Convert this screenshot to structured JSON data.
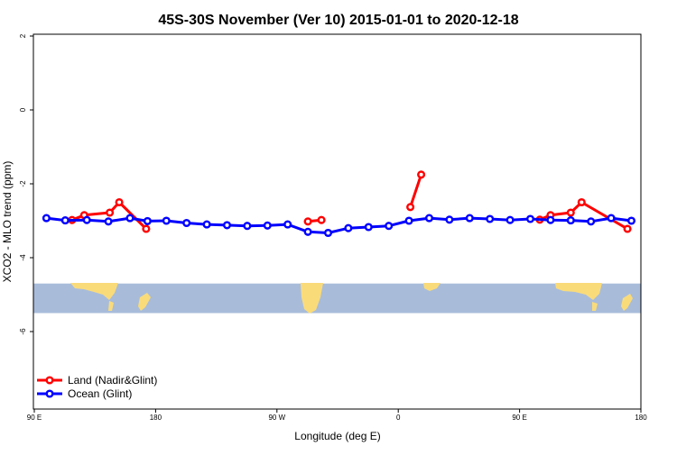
{
  "chart_data": {
    "type": "line",
    "title": "45S-30S November (Ver 10)   2015-01-01 to 2020-12-18",
    "xlabel": "Longitude (deg E)",
    "ylabel": "XCO2 - MLO trend (ppm)",
    "xlim": [
      90,
      540
    ],
    "ylim": [
      -8,
      2
    ],
    "x_ticks": [
      {
        "value": 90,
        "label": "90 E"
      },
      {
        "value": 180,
        "label": "180"
      },
      {
        "value": 270,
        "label": "90 W"
      },
      {
        "value": 360,
        "label": "0"
      },
      {
        "value": 450,
        "label": "90 E"
      },
      {
        "value": 540,
        "label": "180"
      }
    ],
    "y_ticks": [
      {
        "value": 2,
        "label": "2"
      },
      {
        "value": 0,
        "label": "0"
      },
      {
        "value": -2,
        "label": "-2"
      },
      {
        "value": -4,
        "label": "-4"
      },
      {
        "value": -6,
        "label": "-6"
      }
    ],
    "legend": {
      "position": "bottom-left",
      "entries": [
        {
          "label": "Land (Nadir&Glint)",
          "color": "#ff0000"
        },
        {
          "label": "Ocean (Glint)",
          "color": "#0000ff"
        }
      ]
    },
    "series": [
      {
        "name": "Land (Nadir&Glint)",
        "color": "#ff0000",
        "segments": [
          [
            [
              118,
              -2.98
            ],
            [
              127,
              -2.85
            ],
            [
              146,
              -2.78
            ],
            [
              153,
              -2.5
            ],
            [
              173,
              -3.22
            ]
          ],
          [
            [
              293,
              -3.02
            ],
            [
              303,
              -2.98
            ]
          ],
          [
            [
              369,
              -2.63
            ],
            [
              377,
              -1.75
            ]
          ],
          [
            [
              465,
              -2.97
            ],
            [
              473,
              -2.85
            ],
            [
              488,
              -2.78
            ],
            [
              496,
              -2.5
            ],
            [
              530,
              -3.22
            ]
          ]
        ]
      },
      {
        "name": "Ocean (Glint)",
        "color": "#0000ff",
        "segments": [
          [
            [
              99,
              -2.93
            ],
            [
              113,
              -2.99
            ],
            [
              129,
              -2.98
            ],
            [
              145,
              -3.02
            ],
            [
              161,
              -2.93
            ],
            [
              174,
              -3.01
            ],
            [
              188,
              -3.0
            ],
            [
              203,
              -3.06
            ],
            [
              218,
              -3.1
            ],
            [
              233,
              -3.12
            ],
            [
              248,
              -3.14
            ],
            [
              263,
              -3.13
            ],
            [
              278,
              -3.1
            ],
            [
              293,
              -3.3
            ],
            [
              308,
              -3.33
            ],
            [
              323,
              -3.2
            ],
            [
              338,
              -3.17
            ],
            [
              353,
              -3.14
            ],
            [
              368,
              -3.0
            ],
            [
              383,
              -2.93
            ],
            [
              398,
              -2.97
            ],
            [
              413,
              -2.93
            ],
            [
              428,
              -2.95
            ],
            [
              443,
              -2.98
            ],
            [
              458,
              -2.95
            ],
            [
              473,
              -2.98
            ],
            [
              488,
              -2.99
            ],
            [
              503,
              -3.02
            ],
            [
              518,
              -2.93
            ],
            [
              533,
              -3.0
            ]
          ]
        ]
      }
    ],
    "map_strip": {
      "ylim": [
        -5.5,
        -4.7
      ],
      "ocean_color": "#a8bcda",
      "land_color": "#fadb7a"
    }
  }
}
